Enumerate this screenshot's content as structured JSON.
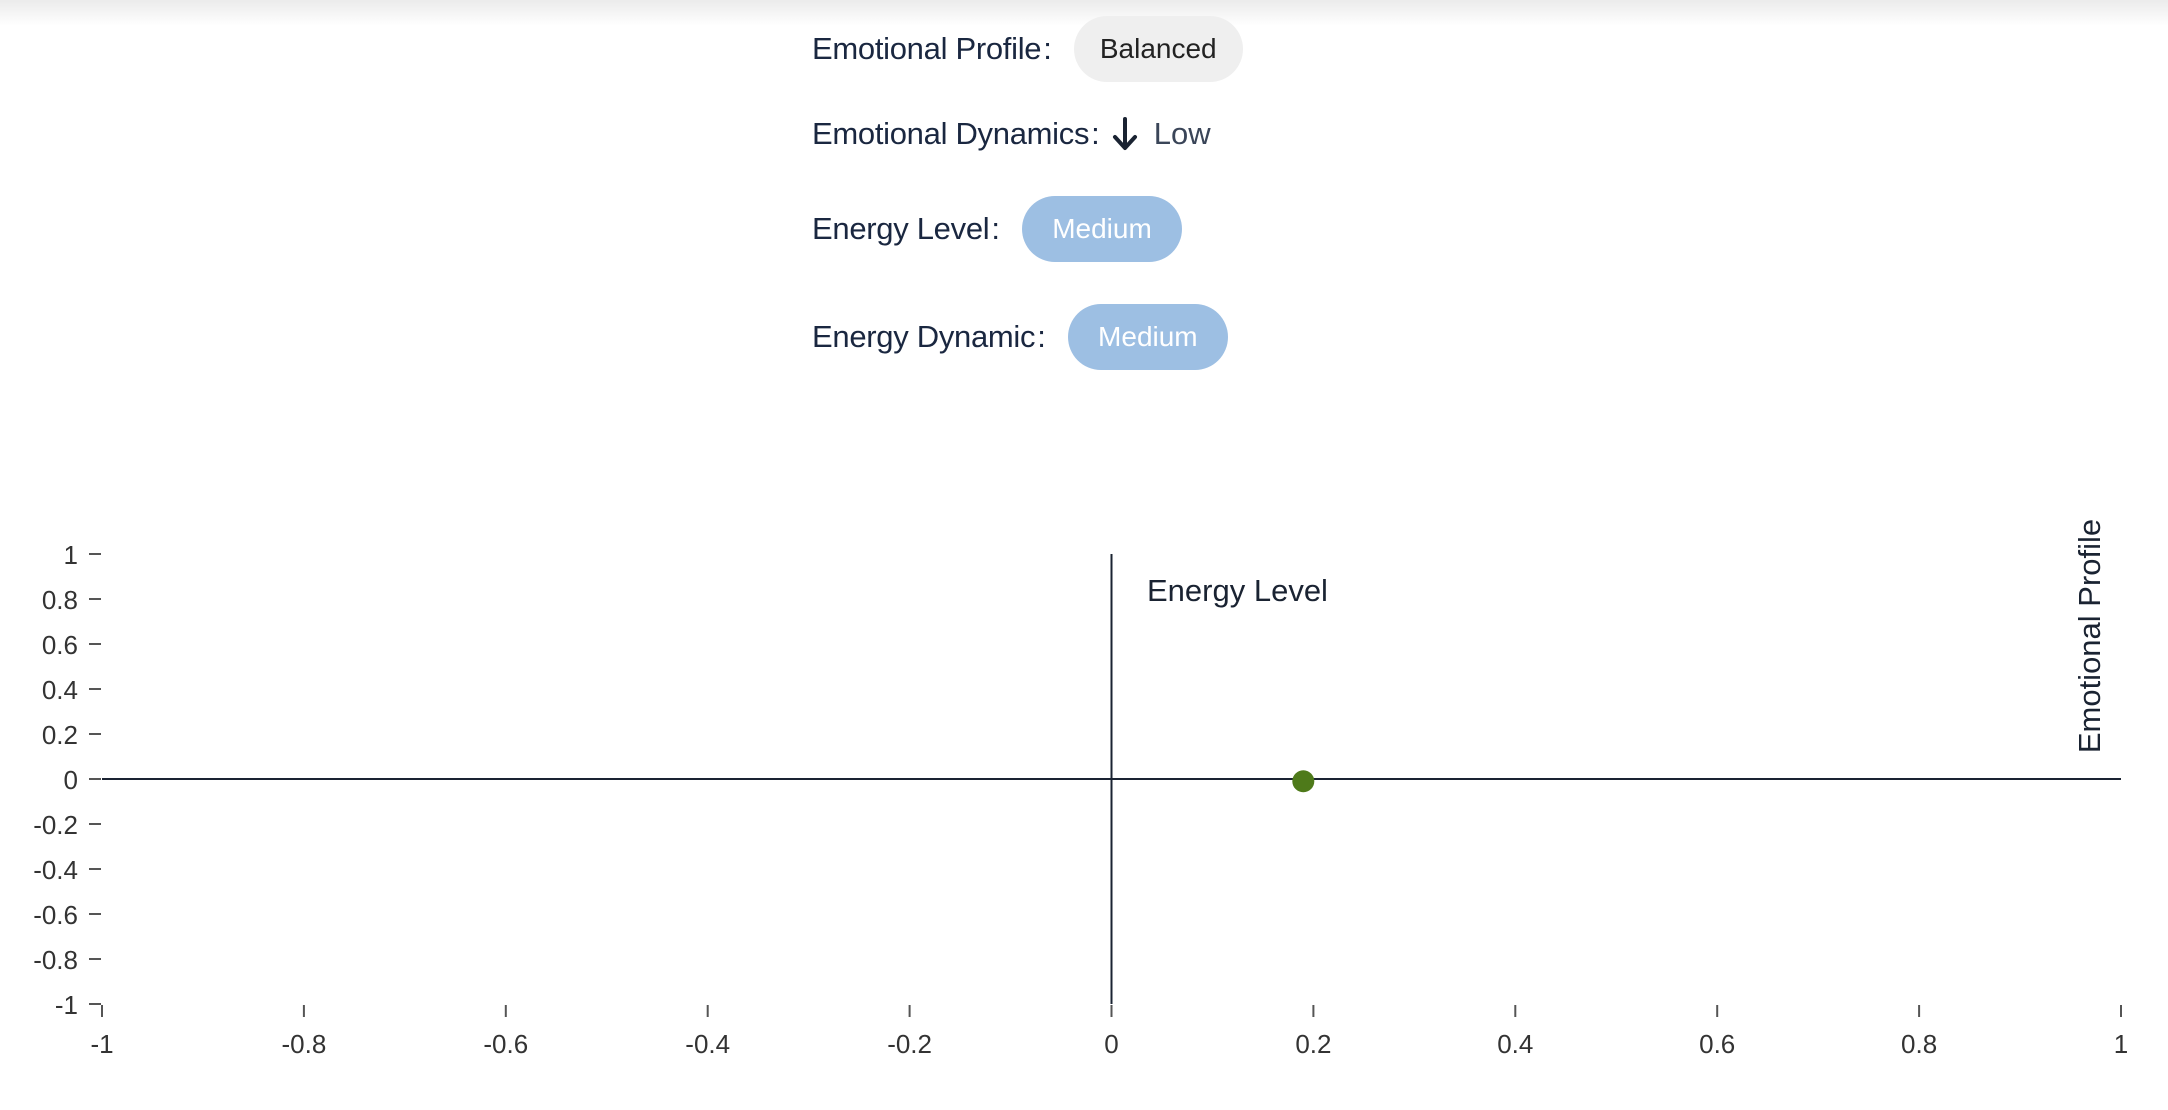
{
  "profile": {
    "emotional_profile_label": "Emotional Profile",
    "emotional_profile_value": "Balanced",
    "emotional_dynamics_label": "Emotional Dynamics",
    "emotional_dynamics_value": "Low",
    "emotional_dynamics_icon": "arrow-down-icon",
    "energy_level_label": "Energy Level",
    "energy_level_value": "Medium",
    "energy_dynamic_label": "Energy Dynamic",
    "energy_dynamic_value": "Medium",
    "colon": ":"
  },
  "colors": {
    "pill_neutral": "#efefef",
    "pill_blue": "#9dbfe3",
    "point": "#4e7a1a",
    "axis": "#1a2332"
  },
  "chart_data": {
    "type": "scatter",
    "xlim": [
      -1,
      1
    ],
    "ylim": [
      -1,
      1
    ],
    "x_ticks": [
      "-1",
      "-0.8",
      "-0.6",
      "-0.4",
      "-0.2",
      "0",
      "0.2",
      "0.4",
      "0.6",
      "0.8",
      "1"
    ],
    "y_ticks": [
      "1",
      "0.8",
      "0.6",
      "0.4",
      "0.2",
      "0",
      "-0.2",
      "-0.4",
      "-0.6",
      "-0.8",
      "-1"
    ],
    "x_axis_label": "Emotional Profile",
    "y_axis_label": "Energy Level",
    "points": [
      {
        "x": 0.19,
        "y": -0.01
      }
    ],
    "grid": false
  }
}
